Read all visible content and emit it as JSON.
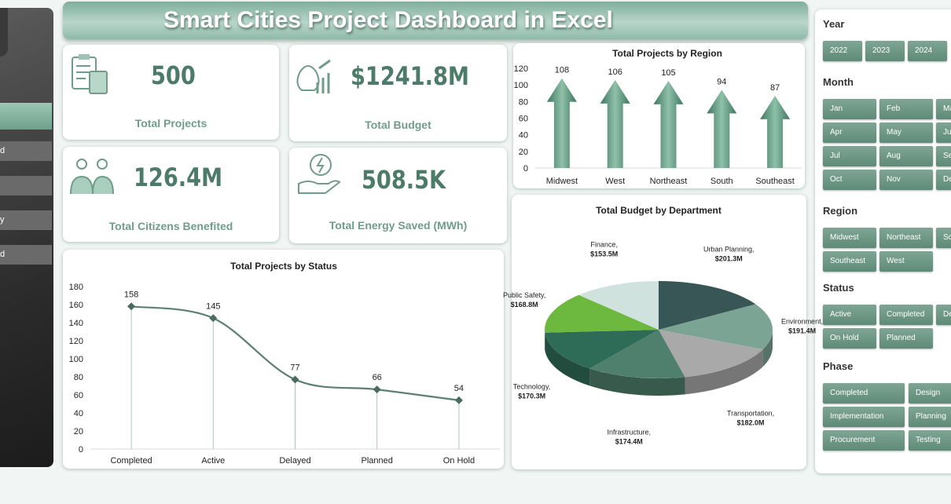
{
  "header": {
    "title": "Smart Cities Project Dashboard in Excel"
  },
  "sidebar": {
    "items": [
      "d",
      "y",
      "d"
    ]
  },
  "kpis": [
    {
      "value": "500",
      "label": "Total Projects"
    },
    {
      "value": "$1241.8M",
      "label": "Total Budget"
    },
    {
      "value": "126.4M",
      "label": "Total Citizens Benefited"
    },
    {
      "value": "508.5K",
      "label": "Total Energy Saved (MWh)"
    }
  ],
  "chart_data": [
    {
      "type": "bar",
      "title": "Total Projects by Region",
      "categories": [
        "Midwest",
        "West",
        "Northeast",
        "South",
        "Southeast"
      ],
      "values": [
        108,
        106,
        105,
        94,
        87
      ],
      "color": "#4f8a71",
      "ylim": [
        0,
        120
      ],
      "yticks": [
        0,
        20,
        40,
        60,
        80,
        100,
        120
      ],
      "grid": false
    },
    {
      "type": "pie",
      "title": "Total Budget by Department",
      "categories": [
        "Urban Planning",
        "Environment",
        "Transportation",
        "Infrastructure",
        "Technology",
        "Public Safety",
        "Finance"
      ],
      "values": [
        201.3,
        191.4,
        182.0,
        174.4,
        170.3,
        168.8,
        153.5
      ],
      "value_labels": [
        "$201.3M",
        "$191.4M",
        "$182.0M",
        "$174.4M",
        "$170.3M",
        "$168.8M",
        "$153.5M"
      ],
      "label_separator": ",",
      "colors": [
        "#385655",
        "#7ca495",
        "#a9a9a9",
        "#4f806d",
        "#2f6c58",
        "#6db83f",
        "#d0e2dd"
      ]
    },
    {
      "type": "line",
      "title": "Total Projects by Status",
      "categories": [
        "Completed",
        "Active",
        "Delayed",
        "Planned",
        "On Hold"
      ],
      "values": [
        158,
        145,
        77,
        66,
        54
      ],
      "color": "#5b7f73",
      "ylim": [
        0,
        180
      ],
      "yticks": [
        0,
        20,
        40,
        60,
        80,
        100,
        120,
        140,
        160,
        180
      ],
      "grid": false
    }
  ],
  "slicers": [
    {
      "title": "Year",
      "items": [
        "2022",
        "2023",
        "2024"
      ]
    },
    {
      "title": "Month",
      "items": [
        "Jan",
        "Feb",
        "Mar",
        "Apr",
        "May",
        "Jun",
        "Jul",
        "Aug",
        "Sep",
        "Oct",
        "Nov",
        "Dec"
      ]
    },
    {
      "title": "Region",
      "items": [
        "Midwest",
        "Northeast",
        "South",
        "Southeast",
        "West"
      ]
    },
    {
      "title": "Status",
      "items": [
        "Active",
        "Completed",
        "Delayed",
        "On Hold",
        "Planned"
      ]
    },
    {
      "title": "Phase",
      "items": [
        "Completed",
        "Design",
        "Implementation",
        "Planning",
        "Procurement",
        "Testing"
      ]
    }
  ]
}
